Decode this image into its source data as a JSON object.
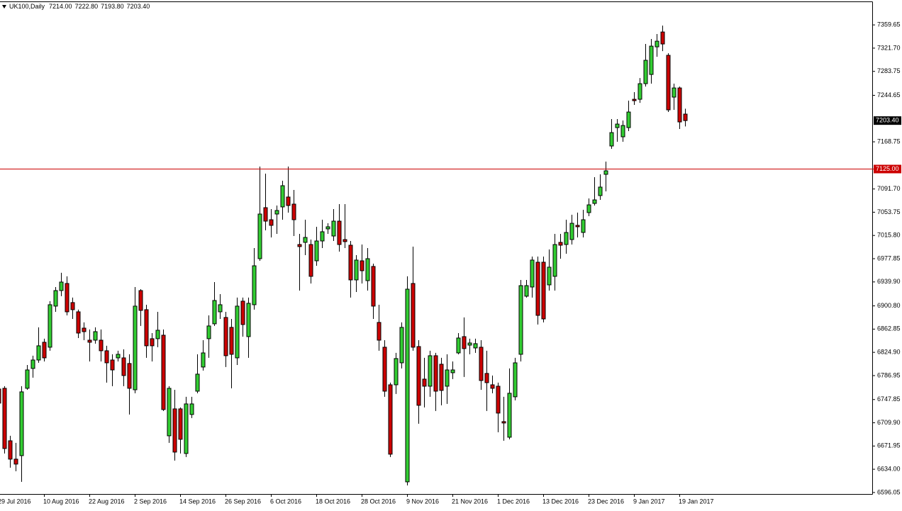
{
  "chart_data": {
    "type": "candlestick",
    "header": {
      "symbol": "UK100,Daily",
      "values": [
        "7214.00",
        "7222.80",
        "7193.80",
        "7203.40"
      ]
    },
    "categories": [
      "29 Jul 2016",
      null,
      null,
      null,
      null,
      null,
      null,
      null,
      "10 Aug 2016",
      null,
      null,
      null,
      null,
      null,
      null,
      null,
      "22 Aug 2016",
      null,
      null,
      null,
      null,
      null,
      null,
      null,
      "2 Sep 2016",
      null,
      null,
      null,
      null,
      null,
      null,
      null,
      "14 Sep 2016",
      null,
      null,
      null,
      null,
      null,
      null,
      null,
      "26 Sep 2016",
      null,
      null,
      null,
      null,
      null,
      null,
      null,
      "6 Oct 2016",
      null,
      null,
      null,
      null,
      null,
      null,
      null,
      "18 Oct 2016",
      null,
      null,
      null,
      null,
      null,
      null,
      null,
      "28 Oct 2016",
      null,
      null,
      null,
      null,
      null,
      null,
      null,
      "9 Nov 2016",
      null,
      null,
      null,
      null,
      null,
      null,
      null,
      "21 Nov 2016",
      null,
      null,
      null,
      null,
      null,
      null,
      null,
      "1 Dec 2016",
      null,
      null,
      null,
      null,
      null,
      null,
      null,
      "13 Dec 2016",
      null,
      null,
      null,
      null,
      null,
      null,
      null,
      "23 Dec 2016",
      null,
      null,
      null,
      null,
      null,
      null,
      null,
      "9 Jan 2017",
      null,
      null,
      null,
      null,
      null,
      null,
      null,
      "19 Jan 2017",
      null
    ],
    "open": [
      6765,
      6766.2,
      6680.5,
      6650.5,
      6656.2,
      6766.2,
      6798.6,
      6812.4,
      6841.4,
      6833.3,
      6900.4,
      6925.8,
      6937.4,
      6906.2,
      6891.1,
      6864.5,
      6844.8,
      6844.8,
      6844.8,
      6827.5,
      6812.4,
      6815.9,
      6815.9,
      6806.7,
      6763.8,
      6925.8,
      6894.6,
      6847.2,
      6847.2,
      6852.9,
      6688.6,
      6732.6,
      6732.6,
      6659.7,
      6723.4,
      6761.5,
      6800.9,
      6847.2,
      6871.5,
      6891.1,
      6881.9,
      6865.7,
      6815.9,
      6908.5,
      6850.6,
      6902.7,
      6977.9,
      7061.2,
      7041.5,
      7050.8,
      7062.4,
      7078.6,
      7067.0,
      7001.0,
      7004.5,
      7001.0,
      6974.4,
      7006.8,
      7026.5,
      7014.9,
      7039.2,
      7009.1,
      6999.9,
      6943.2,
      6974.4,
      6942.0,
      6965.2,
      6873.8,
      6833.3,
      6771.9,
      6771.9,
      6807.8,
      6613.4,
      6937.4,
      6834.4,
      6781.2,
      6769.6,
      6819.4,
      6805.5,
      6769.6,
      6791.6,
      6824.0,
      6850.6,
      6836.7,
      6832.1,
      6833.3,
      6790.5,
      6771.9,
      6769.6,
      6711.8,
      6686.3,
      6752.3,
      6821.7,
      6916.6,
      6931.6,
      6972.1,
      6972.1,
      6935.1,
      6949.0,
      7004.5,
      7001.0,
      7009.1,
      7032.3,
      7020.7,
      7053.1,
      7068.1,
      7080.9,
      7115.6,
      7161.9,
      7191.9,
      7176.9,
      7191.9,
      7238.2,
      7238.2,
      7263.7,
      7278.7,
      7323.8,
      7348.1,
      7310.0,
      7241.7,
      7256.7,
      7214.0
    ],
    "high": [
      6772,
      6769.6,
      6688.6,
      6677.1,
      6769.6,
      6804.3,
      6819.4,
      6865.7,
      6847.2,
      6908.5,
      6931.6,
      6954.8,
      6949.0,
      6914.3,
      6894.6,
      6873.8,
      6862.2,
      6865.7,
      6862.2,
      6835.6,
      6821.7,
      6827.5,
      6829.8,
      6821.7,
      6931.6,
      6928.1,
      6902.7,
      6856.4,
      6891.1,
      6862.2,
      6769.6,
      6763.8,
      6734.9,
      6752.3,
      6752.3,
      6821.7,
      6844.8,
      6885.3,
      6939.7,
      6920.0,
      6891.1,
      6879.5,
      6914.3,
      6914.3,
      6914.3,
      6995.2,
      7128.3,
      7116.7,
      7058.9,
      7064.7,
      7105.2,
      7128.3,
      7090.1,
      7018.4,
      7041.5,
      7009.1,
      7030.0,
      7041.5,
      7035.7,
      7058.9,
      7067.0,
      7067.0,
      7006.8,
      6983.7,
      7001.0,
      6995.2,
      6969.8,
      6902.7,
      6844.8,
      6775.4,
      6824.0,
      6873.8,
      6949.0,
      6997.6,
      6844.8,
      6815.9,
      6827.5,
      6824.0,
      6815.9,
      6821.7,
      6810.1,
      6856.4,
      6881.9,
      6847.2,
      6847.2,
      6844.8,
      6827.5,
      6787.0,
      6775.4,
      6752.3,
      6798.6,
      6815.9,
      6943.2,
      6943.2,
      6981.4,
      6981.4,
      6981.4,
      6992.9,
      7018.4,
      7018.4,
      7041.5,
      7049.6,
      7053.1,
      7057.7,
      7076.2,
      7110.9,
      7115.6,
      7136.4,
      7205.8,
      7205.8,
      7203.5,
      7235.9,
      7249.8,
      7272.9,
      7328.5,
      7336.6,
      7344.7,
      7358.5,
      7313.4,
      7263.7,
      7259.0,
      7222.8
    ],
    "low": [
      6735,
      6659.7,
      6636.6,
      6630.8,
      6613.4,
      6763.8,
      6783.5,
      6807.8,
      6810.1,
      6827.5,
      6891.1,
      6916.6,
      6885.3,
      6879.5,
      6848.3,
      6844.8,
      6810.1,
      6839.1,
      6810.1,
      6775.4,
      6769.6,
      6810.1,
      6769.6,
      6723.4,
      6758.1,
      6868.0,
      6815.9,
      6810.1,
      6833.3,
      6729.1,
      6677.1,
      6648.1,
      6659.7,
      6653.9,
      6717.6,
      6758.1,
      6795.1,
      6815.9,
      6868.0,
      6879.5,
      6800.9,
      6766.2,
      6804.3,
      6850.6,
      6815.9,
      6894.6,
      6974.4,
      7024.2,
      7012.6,
      7018.4,
      7041.5,
      7053.1,
      7014.9,
      6925.8,
      6983.7,
      6937.4,
      6966.3,
      6995.2,
      7018.4,
      7006.8,
      6989.5,
      6995.2,
      6914.3,
      6923.5,
      6937.4,
      6925.8,
      6879.5,
      6827.5,
      6752.3,
      6653.9,
      6756.9,
      6798.6,
      6607.7,
      6827.5,
      6708.3,
      6734.9,
      6752.3,
      6729.1,
      6738.4,
      6740.7,
      6781.2,
      6821.7,
      6784.7,
      6821.7,
      6824.0,
      6763.8,
      6729.1,
      6758.1,
      6694.4,
      6680.5,
      6682.9,
      6746.5,
      6810.1,
      6914.3,
      6914.3,
      6870.3,
      6873.8,
      6925.8,
      6925.8,
      6977.9,
      6986.0,
      7001.0,
      7012.6,
      7012.6,
      7047.3,
      7064.7,
      7073.9,
      7087.8,
      7157.2,
      7168.8,
      7168.8,
      7186.2,
      7229.0,
      7232.4,
      7259.0,
      7263.7,
      7307.6,
      7316.9,
      7217.4,
      7220.9,
      7189.6,
      7193.8
    ],
    "close": [
      6742,
      6667.8,
      6650.5,
      6642.4,
      6760.4,
      6796.2,
      6812.4,
      6835.6,
      6815.9,
      6902.7,
      6925.8,
      6939.7,
      6891.1,
      6894.6,
      6856.4,
      6858.7,
      6841.4,
      6858.7,
      6827.5,
      6807.8,
      6796.2,
      6821.7,
      6787.0,
      6766.2,
      6900.4,
      6893.4,
      6835.6,
      6835.6,
      6861.0,
      6731.5,
      6766.2,
      6662.0,
      6682.9,
      6740.7,
      6740.7,
      6789.3,
      6824.0,
      6868.0,
      6909.6,
      6902.7,
      6819.4,
      6821.7,
      6900.4,
      6870.3,
      6905.0,
      6966.3,
      7050.8,
      7039.2,
      7032.3,
      7056.6,
      7097.1,
      7064.7,
      7041.5,
      6997.6,
      7012.6,
      6949.0,
      7006.8,
      7021.9,
      7030.0,
      7039.2,
      7001.0,
      7005.7,
      6943.2,
      6975.6,
      6958.2,
      6977.9,
      6900.4,
      6844.8,
      6761.5,
      6658.6,
      6814.8,
      6865.7,
      6928.1,
      6833.3,
      6738.4,
      6769.6,
      6819.4,
      6761.5,
      6762.7,
      6796.2,
      6796.2,
      6848.3,
      6831.0,
      6840.2,
      6839.1,
      6778.9,
      6775.4,
      6766.2,
      6725.7,
      6709.5,
      6758.1,
      6807.8,
      6933.9,
      6933.9,
      6975.6,
      6885.3,
      6879.5,
      6964.0,
      7001.0,
      6999.9,
      7020.7,
      7035.7,
      7030.0,
      7041.5,
      7065.8,
      7073.9,
      7094.8,
      7121.4,
      7183.8,
      7197.7,
      7195.4,
      7217.4,
      7235.9,
      7263.7,
      7301.9,
      7325.0,
      7333.1,
      7328.5,
      7220.9,
      7256.7,
      7201.2,
      7203.4
    ],
    "up_color": "#32cd32",
    "down_color": "#cc0000",
    "ylim": [
      6593.6,
      7398.0
    ],
    "yticks": [
      {
        "value": 6596.05,
        "label": "6596.05"
      },
      {
        "value": 6634.0,
        "label": "6634.00"
      },
      {
        "value": 6671.95,
        "label": "6671.95"
      },
      {
        "value": 6709.9,
        "label": "6709.90"
      },
      {
        "value": 6747.85,
        "label": "6747.85"
      },
      {
        "value": 6786.95,
        "label": "6786.95"
      },
      {
        "value": 6824.9,
        "label": "6824.90"
      },
      {
        "value": 6862.85,
        "label": "6862.85"
      },
      {
        "value": 6900.8,
        "label": "6900.80"
      },
      {
        "value": 6939.9,
        "label": "6939.90"
      },
      {
        "value": 6977.85,
        "label": "6977.85"
      },
      {
        "value": 7015.8,
        "label": "7015.80"
      },
      {
        "value": 7053.75,
        "label": "7053.75"
      },
      {
        "value": 7091.7,
        "label": "7091.70"
      },
      {
        "value": 7168.75,
        "label": "7168.75"
      },
      {
        "value": 7244.65,
        "label": "7244.65"
      },
      {
        "value": 7283.75,
        "label": "7283.75"
      },
      {
        "value": 7321.7,
        "label": "7321.70"
      },
      {
        "value": 7359.65,
        "label": "7359.65"
      }
    ],
    "hline": {
      "value": 7125.0,
      "label": "7125.00",
      "color": "#cc0000"
    },
    "last_price": {
      "value": 7203.4,
      "label": "7203.40",
      "color": "#000000"
    }
  }
}
